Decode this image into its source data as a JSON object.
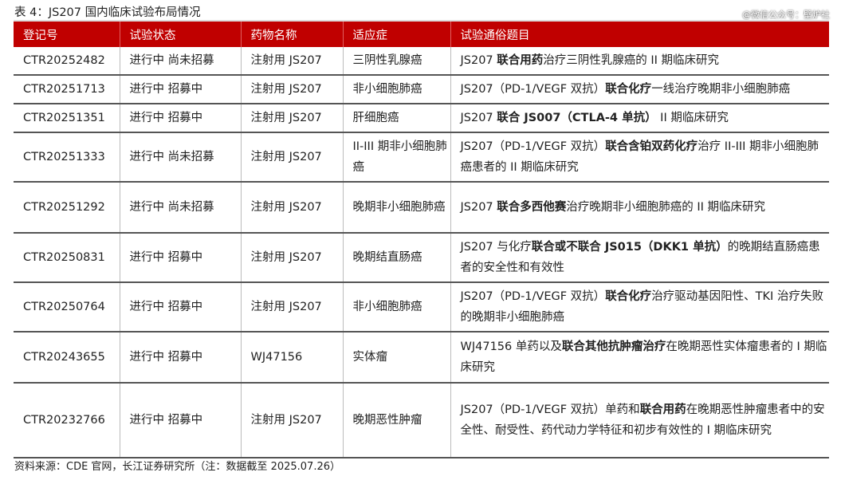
{
  "caption": "表 4：JS207 国内临床试验布局情况",
  "watermark": "@微信公众号：壁炉社",
  "headers": [
    "登记号",
    "试验状态",
    "药物名称",
    "适应症",
    "试验通俗题目"
  ],
  "rows": [
    {
      "id": "CTR20252482",
      "status": "进行中 尚未招募",
      "drug": "注射用 JS207",
      "ind": "三阴性乳腺癌",
      "title": [
        [
          "JS207 ",
          0
        ],
        [
          "联合用药",
          1
        ],
        [
          "治疗三阴性乳腺癌的 II 期临床研究",
          0
        ]
      ]
    },
    {
      "id": "CTR20251713",
      "status": "进行中 招募中",
      "drug": "注射用 JS207",
      "ind": "非小细胞肺癌",
      "title": [
        [
          "JS207（PD-1/VEGF 双抗）",
          0
        ],
        [
          "联合化疗",
          1
        ],
        [
          "一线治疗晚期非小细胞肺癌",
          0
        ]
      ]
    },
    {
      "id": "CTR20251351",
      "status": "进行中 招募中",
      "drug": "注射用 JS207",
      "ind": "肝细胞癌",
      "title": [
        [
          "JS207 ",
          0
        ],
        [
          "联合 JS007（CTLA-4 单抗）",
          1
        ],
        [
          " II 期临床研究",
          0
        ]
      ]
    },
    {
      "id": "CTR20251333",
      "status": "进行中 尚未招募",
      "drug": "注射用 JS207",
      "ind": "II-III 期非小细胞肺癌",
      "title": [
        [
          "JS207（PD-1/VEGF 双抗）",
          0
        ],
        [
          "联合含铂双药化疗",
          1
        ],
        [
          "治疗 II-III 期非小细胞肺癌患者的 II 期临床研究",
          0
        ]
      ]
    },
    {
      "id": "CTR20251292",
      "status": "进行中 尚未招募",
      "drug": "注射用 JS207",
      "ind": "晚期非小细胞肺癌",
      "title": [
        [
          "JS207 ",
          0
        ],
        [
          "联合多西他赛",
          1
        ],
        [
          "治疗晚期非小细胞肺癌的 II 期临床研究",
          0
        ]
      ]
    },
    {
      "id": "CTR20250831",
      "status": "进行中 招募中",
      "drug": "注射用 JS207",
      "ind": "晚期结直肠癌",
      "title": [
        [
          "JS207 与化疗",
          0
        ],
        [
          "联合或不联合 JS015（DKK1 单抗）",
          1
        ],
        [
          "的晚期结直肠癌患者的安全性和有效性",
          0
        ]
      ]
    },
    {
      "id": "CTR20250764",
      "status": "进行中 招募中",
      "drug": "注射用 JS207",
      "ind": "非小细胞肺癌",
      "title": [
        [
          "JS207（PD-1/VEGF 双抗）",
          0
        ],
        [
          "联合化疗",
          1
        ],
        [
          "治疗驱动基因阳性、TKI 治疗失败的晚期非小细胞肺癌",
          0
        ]
      ]
    },
    {
      "id": "CTR20243655",
      "status": "进行中 招募中",
      "drug": "WJ47156",
      "ind": "实体瘤",
      "title": [
        [
          "WJ47156 单药以及",
          0
        ],
        [
          "联合其他抗肿瘤治疗",
          1
        ],
        [
          "在晚期恶性实体瘤患者的 I 期临床研究",
          0
        ]
      ]
    },
    {
      "id": "CTR20232766",
      "status": "进行中 招募中",
      "drug": "注射用 JS207",
      "ind": "晚期恶性肿瘤",
      "title": [
        [
          "JS207（PD-1/VEGF 双抗）单药和",
          0
        ],
        [
          "联合用药",
          1
        ],
        [
          "在晚期恶性肿瘤患者中的安全性、耐受性、药代动力学特征和初步有效性的 I 期临床研究",
          0
        ]
      ]
    }
  ],
  "footer": "资料来源：CDE 官网，长江证券研究所（注：数据截至 2025.07.26）"
}
